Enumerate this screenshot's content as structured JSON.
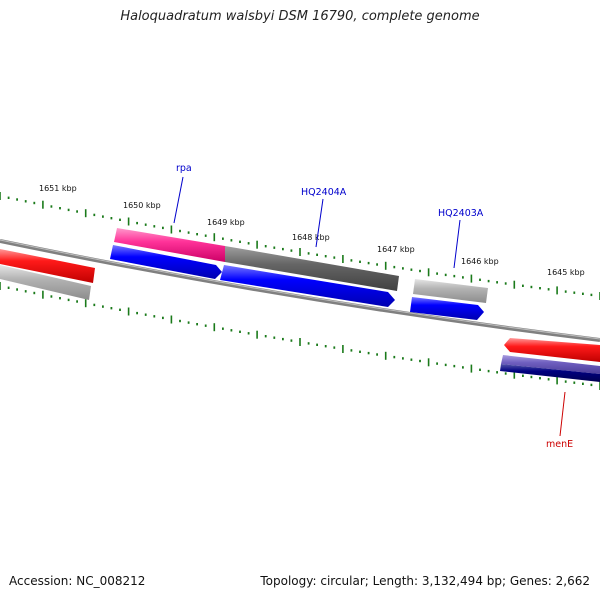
{
  "title": "Haloquadratum walsbyi DSM 16790, complete genome",
  "footer": {
    "accession": "Accession: NC_008212",
    "summary": "Topology: circular; Length: 3,132,494 bp; Genes: 2,662"
  },
  "scale_labels": [
    "1651 kbp",
    "1650 kbp",
    "1649 kbp",
    "1648 kbp",
    "1647 kbp",
    "1646 kbp",
    "1645 kbp"
  ],
  "gene_labels": [
    {
      "text": "rpa",
      "color": "#0000cc"
    },
    {
      "text": "HQ2404A",
      "color": "#0000cc"
    },
    {
      "text": "HQ2403A",
      "color": "#0000cc"
    },
    {
      "text": "menE",
      "color": "#cc0000"
    }
  ],
  "colors": {
    "forward_red": "#ff1a1a",
    "reverse_blue": "#0000ff",
    "pink": "#ff3399",
    "dark_gray": "#666666",
    "light_gray": "#b3b3b3",
    "purple": "#6f5fbf",
    "navy": "#000080",
    "tick_green": "#1a7a1a",
    "backbone": "#808080"
  }
}
